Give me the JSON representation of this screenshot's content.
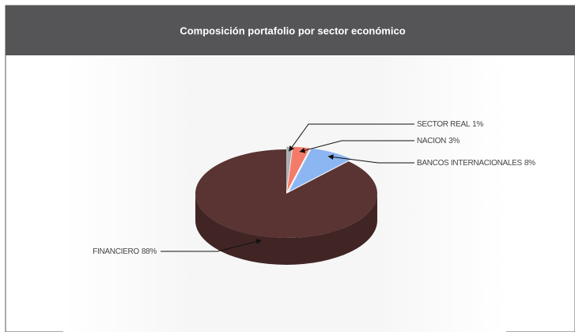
{
  "chart_data": {
    "type": "pie",
    "title": "Composición portafolio por sector económico",
    "categories": [
      "SECTOR REAL",
      "NACION",
      "BANCOS INTERNACIONALES",
      "FINANCIERO"
    ],
    "values": [
      1,
      3,
      8,
      88
    ],
    "value_labels": [
      "1%",
      "3%",
      "8%",
      "88%"
    ],
    "colors": [
      "#a9afb1",
      "#f47b6a",
      "#8cb6f2",
      "#5a3333"
    ]
  }
}
